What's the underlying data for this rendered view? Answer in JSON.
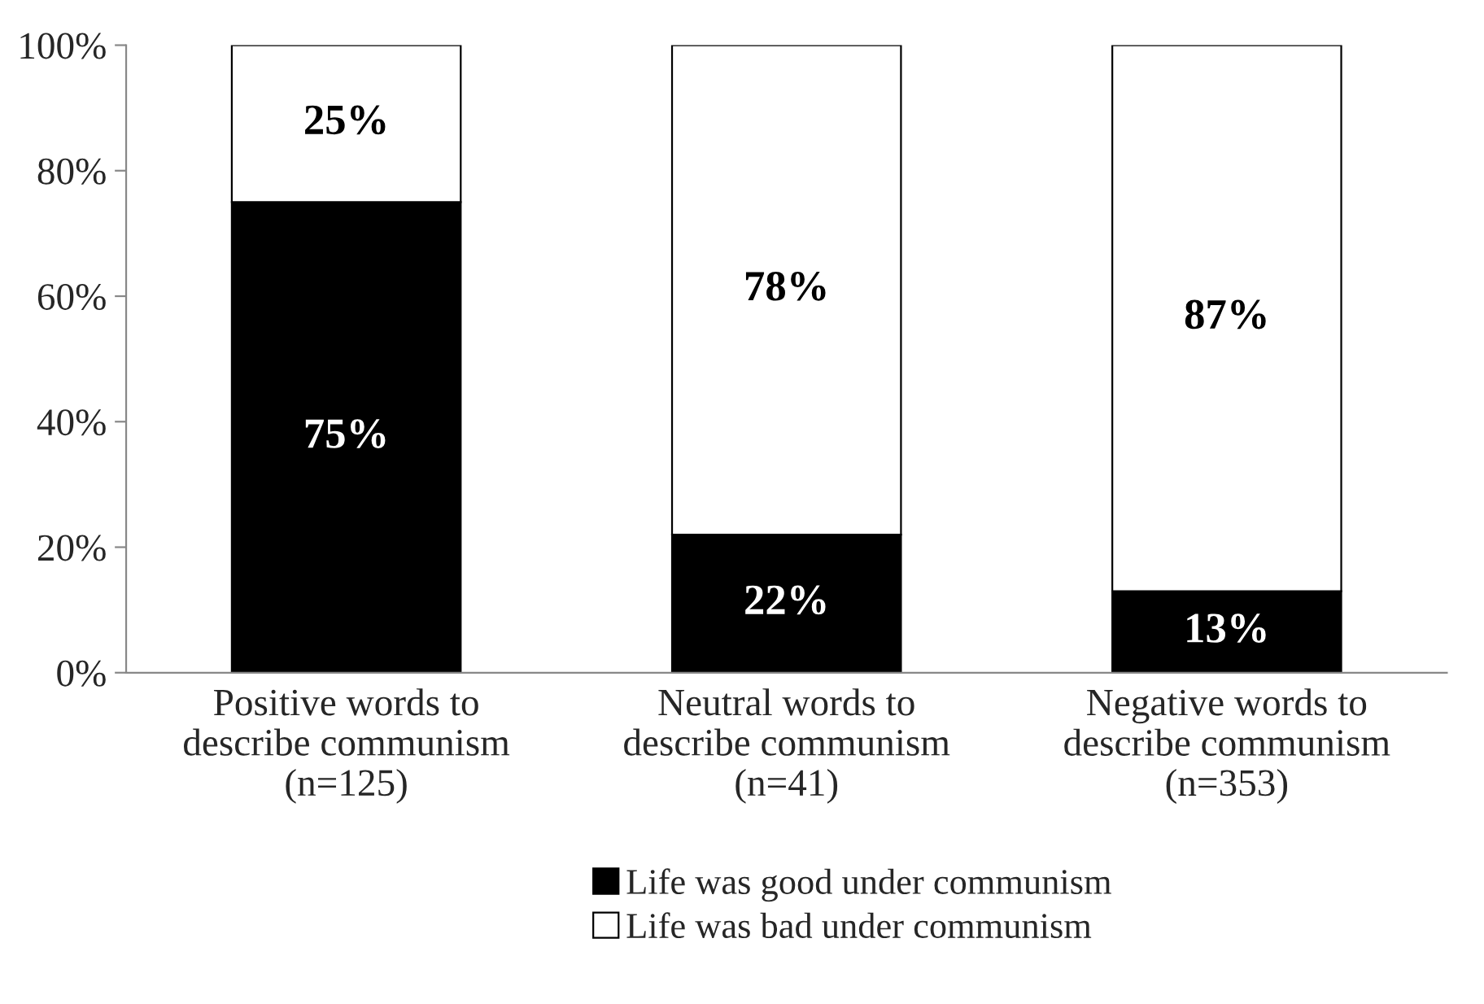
{
  "chart_data": {
    "type": "bar",
    "stacked": true,
    "categories": [
      "Positive words to\ndescribe communism\n(n=125)",
      "Neutral words to\ndescribe communism\n(n=41)",
      "Negative words to\ndescribe communism\n(n=353)"
    ],
    "series": [
      {
        "name": "Life was good under communism",
        "color": "#000000",
        "values": [
          75,
          22,
          13
        ]
      },
      {
        "name": "Life was bad under communism",
        "color": "#ffffff",
        "values": [
          25,
          78,
          87
        ]
      }
    ],
    "ylim": [
      0,
      100
    ],
    "yticks": [
      {
        "value": 0,
        "label": "0%"
      },
      {
        "value": 20,
        "label": "20%"
      },
      {
        "value": 40,
        "label": "40%"
      },
      {
        "value": 60,
        "label": "60%"
      },
      {
        "value": 80,
        "label": "80%"
      },
      {
        "value": 100,
        "label": "100%"
      }
    ],
    "value_labels": [
      [
        "75%",
        "22%",
        "13%"
      ],
      [
        "25%",
        "78%",
        "87%"
      ]
    ],
    "grid": false,
    "legend": "bottom"
  }
}
